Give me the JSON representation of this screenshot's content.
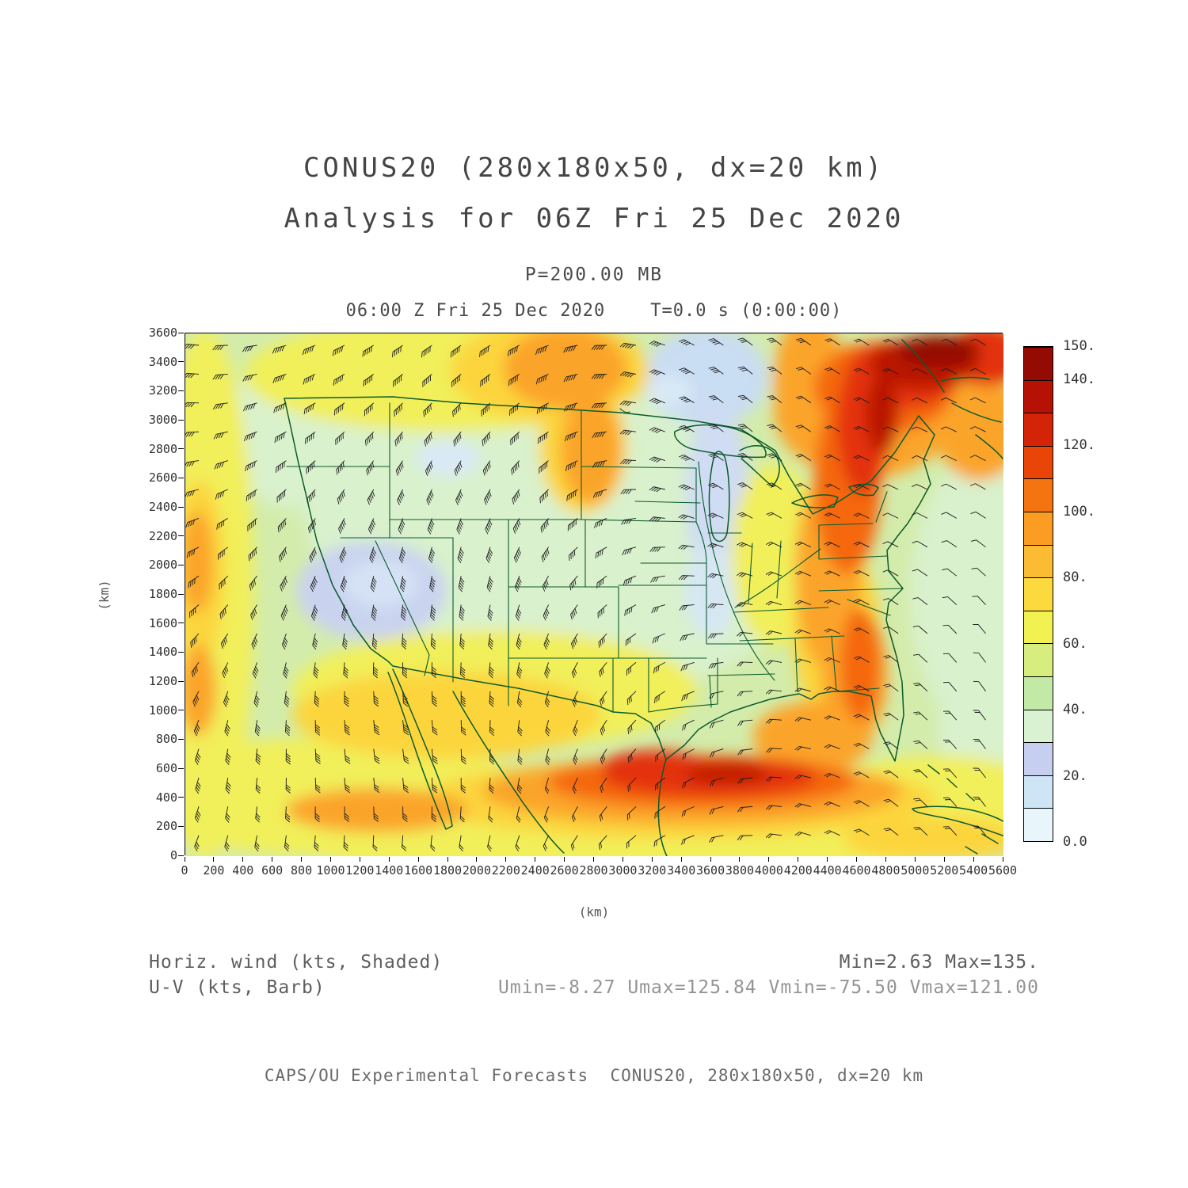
{
  "header": {
    "title": "CONUS20 (280x180x50, dx=20 km)",
    "subtitle": "Analysis for 06Z Fri 25 Dec 2020",
    "level": "P=200.00 MB",
    "valid_time": "06:00 Z Fri 25 Dec 2020    T=0.0 s (0:00:00)"
  },
  "axes": {
    "x": {
      "label": "(km)",
      "min": 0,
      "max": 5600,
      "step": 200
    },
    "y": {
      "label": "(km)",
      "min": 0,
      "max": 3600,
      "step": 200
    }
  },
  "colorbar": {
    "min": 0,
    "max": 150,
    "colors": [
      "#e8f6fb",
      "#cde5f5",
      "#c6cff0",
      "#d9f2d2",
      "#c3e9a6",
      "#d7ee7e",
      "#f2f152",
      "#fcd93c",
      "#fbbc33",
      "#fb9d22",
      "#f47411",
      "#ea4508",
      "#d42408",
      "#b51205",
      "#930b03"
    ],
    "ticks": [
      {
        "value": 150,
        "label": "150."
      },
      {
        "value": 140,
        "label": "140."
      },
      {
        "value": 120,
        "label": "120."
      },
      {
        "value": 100,
        "label": "100."
      },
      {
        "value": 80,
        "label": "80."
      },
      {
        "value": 60,
        "label": "60."
      },
      {
        "value": 40,
        "label": "40."
      },
      {
        "value": 20,
        "label": "20."
      },
      {
        "value": 0,
        "label": "0.0"
      }
    ]
  },
  "footer": {
    "shaded_label": "Horiz. wind (kts, Shaded)",
    "barb_label": "U-V (kts, Barb)",
    "minmax": "Min=2.63 Max=135.",
    "uv_stats": "Umin=-8.27 Umax=125.84 Vmin=-75.50 Vmax=121.00",
    "credit": "CAPS/OU Experimental Forecasts  CONUS20, 280x180x50, dx=20 km"
  },
  "chart_data": {
    "type": "heatmap",
    "title": "CONUS20 (280x180x50, dx=20 km)",
    "subtitle": "Analysis for 06Z Fri 25 Dec 2020",
    "field": "Horiz. wind (kts, Shaded) with U-V wind barbs (kts, Barb)",
    "pressure_level": "P=200.00 MB",
    "valid_time": "06:00 Z Fri 25 Dec 2020  T=0.0 s (0:00:00)",
    "xlabel": "(km)",
    "ylabel": "(km)",
    "xlim": [
      0,
      5600
    ],
    "ylim": [
      0,
      3600
    ],
    "tick_step_km": 200,
    "grid": false,
    "legend_position": "right colorbar",
    "colorbar_levels": [
      0,
      10,
      20,
      30,
      40,
      50,
      60,
      70,
      80,
      90,
      100,
      110,
      120,
      130,
      140,
      150
    ],
    "colorbar_tick_labels": [
      "0.0",
      "20.",
      "40.",
      "60.",
      "80.",
      "100.",
      "120.",
      "140.",
      "150."
    ],
    "colorbar_colors": [
      "#e8f6fb",
      "#cde5f5",
      "#c6cff0",
      "#d9f2d2",
      "#c3e9a6",
      "#d7ee7e",
      "#f2f152",
      "#fcd93c",
      "#fbbc33",
      "#fb9d22",
      "#f47411",
      "#ea4508",
      "#d42408",
      "#b51205",
      "#930b03"
    ],
    "stats": {
      "min": 2.63,
      "max": 135.0,
      "umin": -8.27,
      "umax": 125.84,
      "vmin": -75.5,
      "vmax": 121.0
    },
    "features": [
      "Intense jet streak of 120-150 kt shading running northeast along the US East Coast into eastern Canada (darkest reds in upper right of domain)",
      "Secondary jet band of 100-130 kts across Texas, the Gulf Coast and Gulf of Mexico",
      "Weak winds below 40 kts (pale blue shading) over the Great Basin (Nevada/Utah) and along a trough axis over the upper Midwest / Great Lakes",
      "Moderate 60-100 kt west-northwest flow over the Pacific coast inflow, northern plains and Mexico",
      "Wind barbs plotted on a regular grid over the full CONUS domain; generally westerly flow curving cyclonically around the Great Lakes trough"
    ]
  }
}
